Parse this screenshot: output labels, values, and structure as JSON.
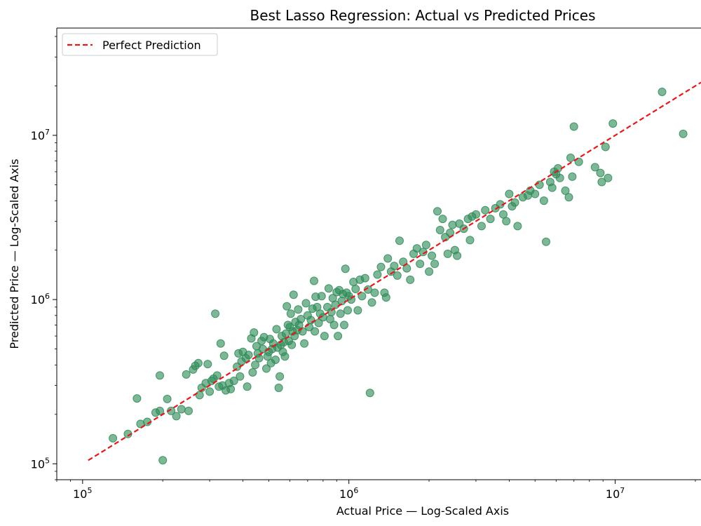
{
  "chart_data": {
    "type": "scatter",
    "title": "Best Lasso Regression: Actual vs Predicted Prices",
    "xlabel": "Actual Price — Log-Scaled Axis",
    "ylabel": "Predicted Price — Log-Scaled Axis",
    "xscale": "log",
    "yscale": "log",
    "xlim": [
      80000,
      21000000
    ],
    "ylim": [
      80000,
      45000000
    ],
    "grid": false,
    "legend": {
      "placement": "top-left",
      "entries": [
        {
          "label": "Perfect Prediction",
          "color": "#e31a1c",
          "style": "dashed"
        }
      ]
    },
    "x_ticks": [
      {
        "value": 100000,
        "base": "10",
        "exp": "5"
      },
      {
        "value": 1000000,
        "base": "10",
        "exp": "6"
      },
      {
        "value": 10000000,
        "base": "10",
        "exp": "7"
      }
    ],
    "y_ticks": [
      {
        "value": 100000,
        "base": "10",
        "exp": "5"
      },
      {
        "value": 1000000,
        "base": "10",
        "exp": "6"
      },
      {
        "value": 10000000,
        "base": "10",
        "exp": "7"
      }
    ],
    "reference_line": {
      "name": "Perfect Prediction",
      "x": [
        105000,
        21000000
      ],
      "y": [
        105000,
        21000000
      ]
    },
    "point_color": "#2e8b57",
    "line_color": "#e31a1c",
    "points": [
      [
        130000,
        143000
      ],
      [
        148000,
        152000
      ],
      [
        160000,
        250000
      ],
      [
        165000,
        175000
      ],
      [
        175000,
        180000
      ],
      [
        188000,
        205000
      ],
      [
        195000,
        210000
      ],
      [
        195000,
        345000
      ],
      [
        200000,
        105000
      ],
      [
        208000,
        248000
      ],
      [
        215000,
        210000
      ],
      [
        225000,
        195000
      ],
      [
        235000,
        215000
      ],
      [
        245000,
        350000
      ],
      [
        250000,
        210000
      ],
      [
        260000,
        375000
      ],
      [
        265000,
        395000
      ],
      [
        272000,
        410000
      ],
      [
        275000,
        262000
      ],
      [
        280000,
        290000
      ],
      [
        290000,
        310000
      ],
      [
        295000,
        405000
      ],
      [
        300000,
        275000
      ],
      [
        305000,
        320000
      ],
      [
        310000,
        330000
      ],
      [
        315000,
        820000
      ],
      [
        320000,
        345000
      ],
      [
        325000,
        295000
      ],
      [
        330000,
        540000
      ],
      [
        335000,
        300000
      ],
      [
        340000,
        455000
      ],
      [
        345000,
        280000
      ],
      [
        355000,
        310000
      ],
      [
        360000,
        285000
      ],
      [
        370000,
        320000
      ],
      [
        380000,
        390000
      ],
      [
        385000,
        470000
      ],
      [
        390000,
        340000
      ],
      [
        395000,
        420000
      ],
      [
        400000,
        480000
      ],
      [
        410000,
        440000
      ],
      [
        415000,
        295000
      ],
      [
        420000,
        460000
      ],
      [
        430000,
        580000
      ],
      [
        435000,
        360000
      ],
      [
        440000,
        630000
      ],
      [
        445000,
        400000
      ],
      [
        450000,
        520000
      ],
      [
        455000,
        470000
      ],
      [
        460000,
        440000
      ],
      [
        470000,
        560000
      ],
      [
        475000,
        500000
      ],
      [
        480000,
        590000
      ],
      [
        490000,
        380000
      ],
      [
        495000,
        450000
      ],
      [
        500000,
        480000
      ],
      [
        505000,
        575000
      ],
      [
        510000,
        410000
      ],
      [
        515000,
        500000
      ],
      [
        520000,
        540000
      ],
      [
        530000,
        430000
      ],
      [
        535000,
        660000
      ],
      [
        540000,
        510000
      ],
      [
        545000,
        290000
      ],
      [
        550000,
        340000
      ],
      [
        555000,
        530000
      ],
      [
        560000,
        600000
      ],
      [
        565000,
        480000
      ],
      [
        570000,
        550000
      ],
      [
        575000,
        450000
      ],
      [
        580000,
        620000
      ],
      [
        585000,
        910000
      ],
      [
        590000,
        700000
      ],
      [
        595000,
        560000
      ],
      [
        600000,
        680000
      ],
      [
        605000,
        820000
      ],
      [
        610000,
        530000
      ],
      [
        615000,
        640000
      ],
      [
        620000,
        1070000
      ],
      [
        625000,
        600000
      ],
      [
        630000,
        730000
      ],
      [
        640000,
        650000
      ],
      [
        645000,
        870000
      ],
      [
        650000,
        700000
      ],
      [
        660000,
        760000
      ],
      [
        670000,
        640000
      ],
      [
        680000,
        540000
      ],
      [
        690000,
        950000
      ],
      [
        700000,
        800000
      ],
      [
        710000,
        680000
      ],
      [
        720000,
        750000
      ],
      [
        730000,
        880000
      ],
      [
        740000,
        1300000
      ],
      [
        745000,
        640000
      ],
      [
        750000,
        1040000
      ],
      [
        760000,
        900000
      ],
      [
        770000,
        720000
      ],
      [
        780000,
        820000
      ],
      [
        790000,
        1050000
      ],
      [
        800000,
        780000
      ],
      [
        810000,
        600000
      ],
      [
        830000,
        900000
      ],
      [
        840000,
        1170000
      ],
      [
        850000,
        760000
      ],
      [
        860000,
        840000
      ],
      [
        870000,
        1020000
      ],
      [
        880000,
        700000
      ],
      [
        890000,
        930000
      ],
      [
        900000,
        1110000
      ],
      [
        910000,
        600000
      ],
      [
        920000,
        1140000
      ],
      [
        930000,
        820000
      ],
      [
        940000,
        980000
      ],
      [
        950000,
        1080000
      ],
      [
        960000,
        700000
      ],
      [
        970000,
        1540000
      ],
      [
        980000,
        1100000
      ],
      [
        990000,
        860000
      ],
      [
        1000000,
        1050000
      ],
      [
        1020000,
        1000000
      ],
      [
        1040000,
        1280000
      ],
      [
        1060000,
        1160000
      ],
      [
        1080000,
        860000
      ],
      [
        1100000,
        1320000
      ],
      [
        1120000,
        1050000
      ],
      [
        1150000,
        1350000
      ],
      [
        1180000,
        1150000
      ],
      [
        1200000,
        270000
      ],
      [
        1220000,
        960000
      ],
      [
        1250000,
        1100000
      ],
      [
        1280000,
        1420000
      ],
      [
        1320000,
        1580000
      ],
      [
        1360000,
        1100000
      ],
      [
        1380000,
        1030000
      ],
      [
        1400000,
        1780000
      ],
      [
        1440000,
        1480000
      ],
      [
        1480000,
        1600000
      ],
      [
        1520000,
        1400000
      ],
      [
        1550000,
        2280000
      ],
      [
        1600000,
        1700000
      ],
      [
        1650000,
        1550000
      ],
      [
        1700000,
        1320000
      ],
      [
        1750000,
        1900000
      ],
      [
        1800000,
        2050000
      ],
      [
        1850000,
        1650000
      ],
      [
        1900000,
        1950000
      ],
      [
        1950000,
        2150000
      ],
      [
        2000000,
        1480000
      ],
      [
        2050000,
        1850000
      ],
      [
        2100000,
        1650000
      ],
      [
        2150000,
        3450000
      ],
      [
        2200000,
        2650000
      ],
      [
        2250000,
        3100000
      ],
      [
        2300000,
        2400000
      ],
      [
        2350000,
        1900000
      ],
      [
        2400000,
        2550000
      ],
      [
        2450000,
        2850000
      ],
      [
        2500000,
        2000000
      ],
      [
        2550000,
        1850000
      ],
      [
        2600000,
        2900000
      ],
      [
        2700000,
        2700000
      ],
      [
        2800000,
        3100000
      ],
      [
        2850000,
        2300000
      ],
      [
        2900000,
        3200000
      ],
      [
        3000000,
        3300000
      ],
      [
        3150000,
        2800000
      ],
      [
        3250000,
        3500000
      ],
      [
        3400000,
        3100000
      ],
      [
        3550000,
        3600000
      ],
      [
        3700000,
        3800000
      ],
      [
        3800000,
        3300000
      ],
      [
        3900000,
        3000000
      ],
      [
        4000000,
        4400000
      ],
      [
        4100000,
        3700000
      ],
      [
        4200000,
        3900000
      ],
      [
        4300000,
        2800000
      ],
      [
        4500000,
        4200000
      ],
      [
        4700000,
        4300000
      ],
      [
        4800000,
        4600000
      ],
      [
        5000000,
        4400000
      ],
      [
        5200000,
        5000000
      ],
      [
        5400000,
        4000000
      ],
      [
        5500000,
        2250000
      ],
      [
        5700000,
        5200000
      ],
      [
        5800000,
        4800000
      ],
      [
        5900000,
        6000000
      ],
      [
        6000000,
        5800000
      ],
      [
        6100000,
        6300000
      ],
      [
        6200000,
        5500000
      ],
      [
        6500000,
        4600000
      ],
      [
        6700000,
        4200000
      ],
      [
        6800000,
        7300000
      ],
      [
        6900000,
        5600000
      ],
      [
        7000000,
        11300000
      ],
      [
        7300000,
        6900000
      ],
      [
        8400000,
        6400000
      ],
      [
        8800000,
        5900000
      ],
      [
        8900000,
        5200000
      ],
      [
        9200000,
        8500000
      ],
      [
        9400000,
        5500000
      ],
      [
        9800000,
        11800000
      ],
      [
        15000000,
        18400000
      ],
      [
        18000000,
        10200000
      ]
    ]
  }
}
